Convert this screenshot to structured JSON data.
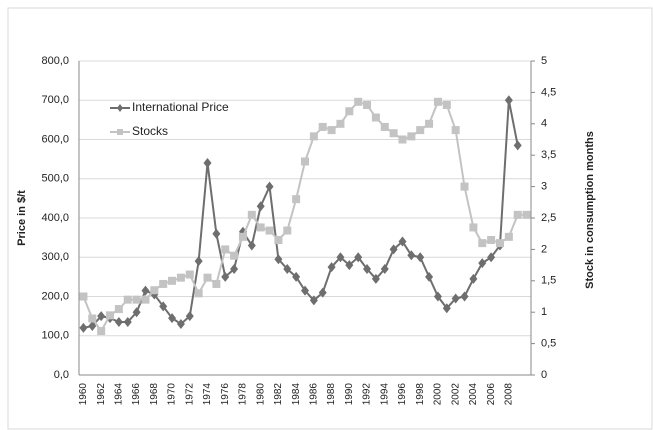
{
  "chart_data": {
    "type": "line",
    "y_label": "Price in $/t",
    "y2_label": "Stock in consumption months",
    "categories": [
      "1960",
      null,
      "1962",
      null,
      "1964",
      null,
      "1966",
      null,
      "1968",
      null,
      "1970",
      null,
      "1972",
      null,
      "1974",
      null,
      "1976",
      null,
      "1978",
      null,
      "1980",
      null,
      "1982",
      null,
      "1984",
      null,
      "1986",
      null,
      "1988",
      null,
      "1990",
      null,
      "1992",
      null,
      "1994",
      null,
      "1996",
      null,
      "1998",
      null,
      "2000",
      null,
      "2002",
      null,
      "2004",
      null,
      "2006",
      null,
      "2008",
      null,
      null
    ],
    "series": [
      {
        "name": "International Price",
        "color": "#6e6e6e",
        "marker": "diamond",
        "values": [
          120,
          125,
          150,
          145,
          135,
          135,
          160,
          215,
          205,
          175,
          145,
          130,
          150,
          290,
          540,
          360,
          250,
          270,
          365,
          330,
          430,
          480,
          295,
          270,
          250,
          215,
          190,
          210,
          275,
          300,
          280,
          300,
          270,
          245,
          270,
          320,
          340,
          305,
          300,
          250,
          200,
          170,
          195,
          200,
          245,
          285,
          300,
          330,
          700,
          585,
          null
        ]
      },
      {
        "name": "Stocks",
        "color": "#c3c3c3",
        "marker": "square",
        "axis": "y2",
        "values": [
          1.25,
          0.9,
          0.7,
          0.95,
          1.05,
          1.2,
          1.2,
          1.2,
          1.35,
          1.45,
          1.5,
          1.55,
          1.6,
          1.3,
          1.55,
          1.45,
          2.0,
          1.9,
          2.2,
          2.55,
          2.35,
          2.3,
          2.15,
          2.3,
          2.8,
          3.4,
          3.8,
          3.95,
          3.9,
          4.0,
          4.2,
          4.35,
          4.3,
          4.1,
          3.95,
          3.85,
          3.75,
          3.8,
          3.9,
          4.0,
          4.35,
          4.3,
          3.9,
          3.0,
          2.35,
          2.1,
          2.15,
          2.1,
          2.2,
          2.55,
          2.55
        ]
      }
    ],
    "ylim": [
      0,
      800
    ],
    "yticks": [
      {
        "value": 0,
        "label": "0,0"
      },
      {
        "value": 100,
        "label": "100,0"
      },
      {
        "value": 200,
        "label": "200,0"
      },
      {
        "value": 300,
        "label": "300,0"
      },
      {
        "value": 400,
        "label": "400,0"
      },
      {
        "value": 500,
        "label": "500,0"
      },
      {
        "value": 600,
        "label": "600,0"
      },
      {
        "value": 700,
        "label": "700,0"
      },
      {
        "value": 800,
        "label": "800,0"
      }
    ],
    "y2lim": [
      0,
      5
    ],
    "y2ticks": [
      0,
      {
        "value": 0.5,
        "label": "0,5"
      },
      1,
      {
        "value": 1.5,
        "label": "1,5"
      },
      2,
      {
        "value": 2.5,
        "label": "2,5"
      },
      3,
      {
        "value": 3.5,
        "label": "3,5"
      },
      4,
      {
        "value": 4.5,
        "label": "4,5"
      },
      5
    ],
    "grid": true,
    "legend": "upper left"
  }
}
